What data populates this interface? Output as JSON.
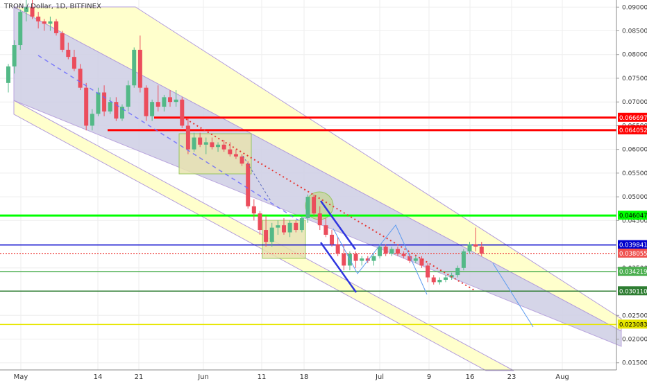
{
  "header": {
    "title": "TRON / Dollar, 1D, BITFINEX"
  },
  "chart_data": {
    "type": "candlestick",
    "title": "TRON / Dollar, 1D, BITFINEX",
    "x_ticks": [
      "May",
      "14",
      "21",
      "Jun",
      "11",
      "18",
      "Jul",
      "9",
      "16",
      "23",
      "Aug"
    ],
    "y_ticks": [
      "0.090000",
      "0.085000",
      "0.080000",
      "0.075000",
      "0.070000",
      "0.065000",
      "0.060000",
      "0.055000",
      "0.050000",
      "0.045000",
      "0.035000",
      "0.025000",
      "0.020000",
      "0.015000"
    ],
    "ylim": [
      0.0135,
      0.0915
    ],
    "horizontal_lines": [
      {
        "label": "0.066697",
        "value": 0.066697,
        "color": "#ff0000"
      },
      {
        "label": "0.064052",
        "value": 0.064052,
        "color": "#ff0000"
      },
      {
        "label": "0.046047",
        "value": 0.046047,
        "color": "#00ff00"
      },
      {
        "label": "0.039841",
        "value": 0.039841,
        "color": "#0000cc"
      },
      {
        "label": "0.038055",
        "value": 0.038055,
        "color": "#ef5350"
      },
      {
        "label": "0.034219",
        "value": 0.034219,
        "color": "#4caf50"
      },
      {
        "label": "0.030110",
        "value": 0.03011,
        "color": "#2e7d32"
      },
      {
        "label": "0.023083",
        "value": 0.023083,
        "color": "#e6e600"
      }
    ],
    "candles": [
      [
        0.074,
        0.078,
        0.072,
        0.0775
      ],
      [
        0.0775,
        0.083,
        0.076,
        0.082
      ],
      [
        0.082,
        0.0895,
        0.081,
        0.089
      ],
      [
        0.089,
        0.0915,
        0.087,
        0.09
      ],
      [
        0.09,
        0.0915,
        0.0875,
        0.088
      ],
      [
        0.088,
        0.089,
        0.0855,
        0.087
      ],
      [
        0.087,
        0.0875,
        0.085,
        0.0865
      ],
      [
        0.0865,
        0.088,
        0.085,
        0.087
      ],
      [
        0.087,
        0.0875,
        0.084,
        0.0845
      ],
      [
        0.0845,
        0.085,
        0.0805,
        0.081
      ],
      [
        0.081,
        0.0825,
        0.079,
        0.0795
      ],
      [
        0.0795,
        0.081,
        0.0765,
        0.077
      ],
      [
        0.077,
        0.078,
        0.0725,
        0.073
      ],
      [
        0.073,
        0.074,
        0.064,
        0.065
      ],
      [
        0.065,
        0.0685,
        0.064,
        0.0675
      ],
      [
        0.0675,
        0.073,
        0.067,
        0.072
      ],
      [
        0.072,
        0.0735,
        0.067,
        0.068
      ],
      [
        0.068,
        0.071,
        0.0675,
        0.07
      ],
      [
        0.07,
        0.071,
        0.066,
        0.0665
      ],
      [
        0.0665,
        0.0695,
        0.066,
        0.069
      ],
      [
        0.069,
        0.0745,
        0.068,
        0.0735
      ],
      [
        0.0735,
        0.0815,
        0.073,
        0.081
      ],
      [
        0.081,
        0.084,
        0.072,
        0.073
      ],
      [
        0.073,
        0.0735,
        0.066,
        0.067
      ],
      [
        0.067,
        0.0705,
        0.066,
        0.07
      ],
      [
        0.07,
        0.0735,
        0.068,
        0.069
      ],
      [
        0.069,
        0.0715,
        0.068,
        0.071
      ],
      [
        0.071,
        0.0725,
        0.069,
        0.07
      ],
      [
        0.07,
        0.0725,
        0.069,
        0.0705
      ],
      [
        0.0705,
        0.071,
        0.0645,
        0.065
      ],
      [
        0.065,
        0.0665,
        0.059,
        0.06
      ],
      [
        0.06,
        0.0635,
        0.0595,
        0.0625
      ],
      [
        0.0625,
        0.0635,
        0.0605,
        0.061
      ],
      [
        0.061,
        0.0625,
        0.059,
        0.0615
      ],
      [
        0.0615,
        0.0625,
        0.06,
        0.0605
      ],
      [
        0.0605,
        0.0615,
        0.0595,
        0.061
      ],
      [
        0.061,
        0.062,
        0.0595,
        0.06
      ],
      [
        0.06,
        0.0615,
        0.0585,
        0.059
      ],
      [
        0.059,
        0.06,
        0.058,
        0.0585
      ],
      [
        0.0585,
        0.059,
        0.0565,
        0.057
      ],
      [
        0.057,
        0.0575,
        0.0475,
        0.048
      ],
      [
        0.048,
        0.0495,
        0.045,
        0.0465
      ],
      [
        0.0465,
        0.047,
        0.042,
        0.043
      ],
      [
        0.043,
        0.046,
        0.0395,
        0.0405
      ],
      [
        0.0405,
        0.0445,
        0.0395,
        0.0435
      ],
      [
        0.0435,
        0.045,
        0.042,
        0.044
      ],
      [
        0.044,
        0.0455,
        0.042,
        0.0425
      ],
      [
        0.0425,
        0.045,
        0.0415,
        0.0445
      ],
      [
        0.0445,
        0.045,
        0.0425,
        0.043
      ],
      [
        0.043,
        0.046,
        0.0425,
        0.0455
      ],
      [
        0.0455,
        0.0505,
        0.0445,
        0.05
      ],
      [
        0.05,
        0.0505,
        0.046,
        0.0465
      ],
      [
        0.0465,
        0.048,
        0.043,
        0.044
      ],
      [
        0.044,
        0.0455,
        0.0415,
        0.042
      ],
      [
        0.042,
        0.043,
        0.0395,
        0.04
      ],
      [
        0.04,
        0.0415,
        0.0375,
        0.038
      ],
      [
        0.038,
        0.04,
        0.0345,
        0.0355
      ],
      [
        0.0355,
        0.0385,
        0.0345,
        0.038
      ],
      [
        0.038,
        0.0385,
        0.035,
        0.0365
      ],
      [
        0.0365,
        0.0375,
        0.0355,
        0.037
      ],
      [
        0.037,
        0.0375,
        0.036,
        0.0365
      ],
      [
        0.0365,
        0.038,
        0.0355,
        0.0375
      ],
      [
        0.0375,
        0.04,
        0.037,
        0.0395
      ],
      [
        0.0395,
        0.04,
        0.0375,
        0.038
      ],
      [
        0.038,
        0.0395,
        0.0375,
        0.039
      ],
      [
        0.039,
        0.0395,
        0.0375,
        0.038
      ],
      [
        0.038,
        0.0385,
        0.037,
        0.0375
      ],
      [
        0.0375,
        0.038,
        0.036,
        0.0365
      ],
      [
        0.0365,
        0.0375,
        0.036,
        0.037
      ],
      [
        0.037,
        0.0375,
        0.035,
        0.0355
      ],
      [
        0.0355,
        0.036,
        0.032,
        0.033
      ],
      [
        0.033,
        0.0335,
        0.0315,
        0.032
      ],
      [
        0.032,
        0.033,
        0.0315,
        0.0325
      ],
      [
        0.0325,
        0.0335,
        0.032,
        0.033
      ],
      [
        0.033,
        0.034,
        0.0325,
        0.0335
      ],
      [
        0.0335,
        0.0355,
        0.033,
        0.035
      ],
      [
        0.035,
        0.039,
        0.0345,
        0.0385
      ],
      [
        0.0385,
        0.0405,
        0.038,
        0.04
      ],
      [
        0.04,
        0.0435,
        0.0385,
        0.0395
      ],
      [
        0.0395,
        0.0405,
        0.0375,
        0.038
      ]
    ]
  }
}
